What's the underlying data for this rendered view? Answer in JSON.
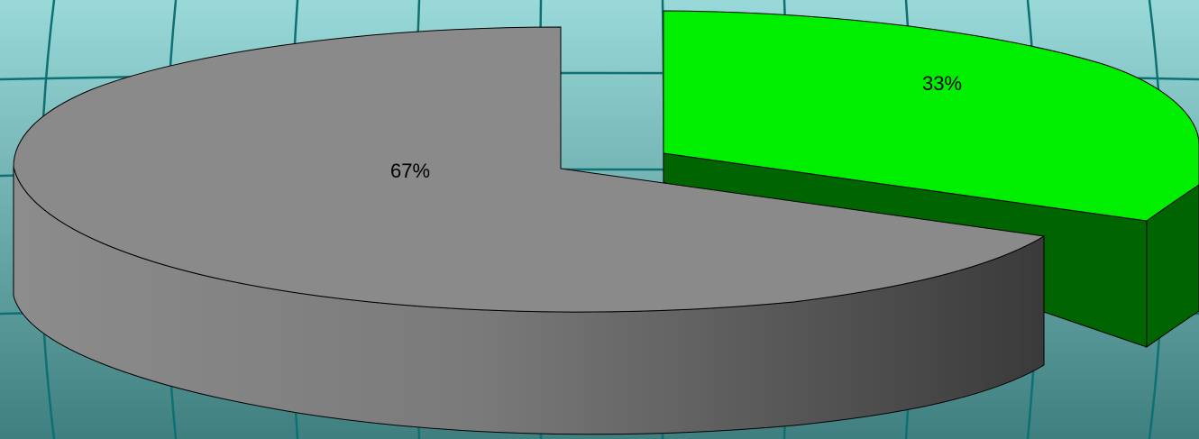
{
  "chart_data": {
    "type": "pie",
    "style": "3d-exploded",
    "slices": [
      {
        "label": "33%",
        "value": 33,
        "top_color": "#00ee00",
        "side_color": "#006400"
      },
      {
        "label": "67%",
        "value": 67,
        "top_color": "#8a8a8a",
        "side_color": "#6a6a6a"
      }
    ]
  },
  "theme": {
    "background_top": "#9ad9d9",
    "background_bottom": "#3f7f7f",
    "grid_line_color": "#0e7070"
  }
}
